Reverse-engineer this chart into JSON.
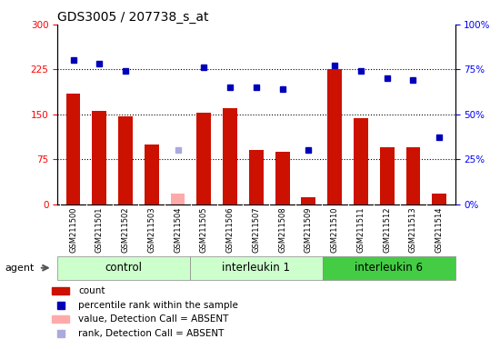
{
  "title": "GDS3005 / 207738_s_at",
  "samples": [
    "GSM211500",
    "GSM211501",
    "GSM211502",
    "GSM211503",
    "GSM211504",
    "GSM211505",
    "GSM211506",
    "GSM211507",
    "GSM211508",
    "GSM211509",
    "GSM211510",
    "GSM211511",
    "GSM211512",
    "GSM211513",
    "GSM211514"
  ],
  "counts": [
    185,
    155,
    147,
    100,
    null,
    153,
    160,
    90,
    88,
    12,
    225,
    143,
    95,
    95,
    18
  ],
  "absent_counts": [
    null,
    null,
    null,
    null,
    18,
    null,
    null,
    null,
    null,
    null,
    null,
    null,
    null,
    null,
    null
  ],
  "percentile_ranks": [
    80,
    78,
    74,
    null,
    null,
    76,
    65,
    65,
    64,
    30,
    77,
    74,
    70,
    69,
    37
  ],
  "absent_ranks": [
    null,
    null,
    null,
    null,
    30,
    null,
    null,
    null,
    null,
    null,
    null,
    null,
    null,
    null,
    null
  ],
  "groups": [
    {
      "label": "control",
      "start": 0,
      "end": 5,
      "light_color": "#ccffcc",
      "dark_color": "#99ee99"
    },
    {
      "label": "interleukin 1",
      "start": 5,
      "end": 10,
      "light_color": "#ccffcc",
      "dark_color": "#99ee99"
    },
    {
      "label": "interleukin 6",
      "start": 10,
      "end": 15,
      "light_color": "#66dd66",
      "dark_color": "#44cc44"
    }
  ],
  "bar_color": "#cc1100",
  "absent_bar_color": "#ffaaaa",
  "rank_color": "#0000bb",
  "absent_rank_color": "#aaaadd",
  "ylim_left": [
    0,
    300
  ],
  "ylim_right": [
    0,
    100
  ],
  "yticks_left": [
    0,
    75,
    150,
    225,
    300
  ],
  "yticks_right": [
    0,
    25,
    50,
    75,
    100
  ],
  "hlines": [
    75,
    150,
    225
  ],
  "xticklabel_bg": "#d3d3d3",
  "plot_bg_color": "#ffffff"
}
